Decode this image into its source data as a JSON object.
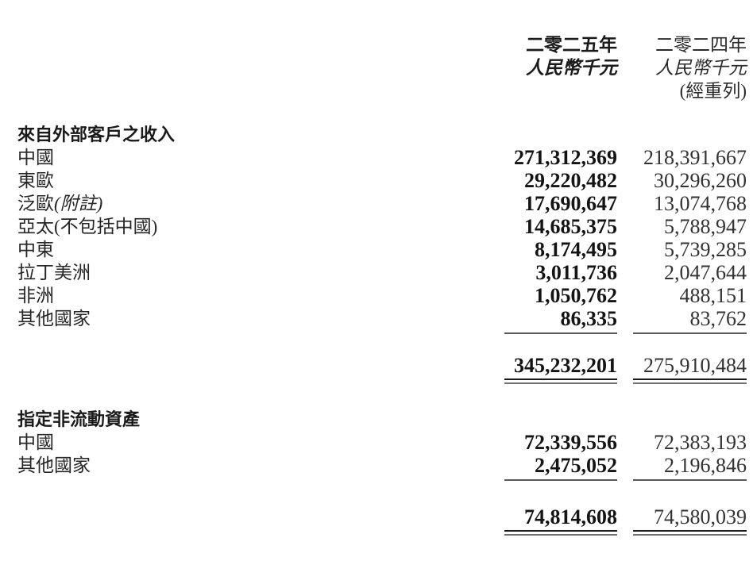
{
  "colors": {
    "text": "#1f1f1f",
    "rule_dark": "#1c1c1c",
    "rule_gray": "#717171",
    "rule_single": "#595959"
  },
  "table": {
    "header": {
      "y2025": {
        "year": "二零二五年",
        "currency": "人民幣千元"
      },
      "y2024": {
        "year": "二零二四年",
        "currency": "人民幣千元",
        "restated": "(經重列)"
      }
    },
    "sections": [
      {
        "title": "來自外部客戶之收入",
        "rows": [
          {
            "label": "中國",
            "v2025": "271,312,369",
            "v2024": "218,391,667"
          },
          {
            "label": "東歐",
            "v2025": "29,220,482",
            "v2024": "30,296,260"
          },
          {
            "label": "泛歐",
            "label_note": "(附註)",
            "v2025": "17,690,647",
            "v2024": "13,074,768"
          },
          {
            "label": "亞太(不包括中國)",
            "v2025": "14,685,375",
            "v2024": "5,788,947"
          },
          {
            "label": "中東",
            "v2025": "8,174,495",
            "v2024": "5,739,285"
          },
          {
            "label": "拉丁美洲",
            "v2025": "3,011,736",
            "v2024": "2,047,644"
          },
          {
            "label": "非洲",
            "v2025": "1,050,762",
            "v2024": "488,151"
          },
          {
            "label": "其他國家",
            "v2025": "86,335",
            "v2024": "83,762"
          }
        ],
        "total": {
          "v2025": "345,232,201",
          "v2024": "275,910,484"
        }
      },
      {
        "title": "指定非流動資產",
        "rows": [
          {
            "label": "中國",
            "v2025": "72,339,556",
            "v2024": "72,383,193"
          },
          {
            "label": "其他國家",
            "v2025": "2,475,052",
            "v2024": "2,196,846"
          }
        ],
        "total": {
          "v2025": "74,814,608",
          "v2024": "74,580,039"
        }
      }
    ]
  }
}
